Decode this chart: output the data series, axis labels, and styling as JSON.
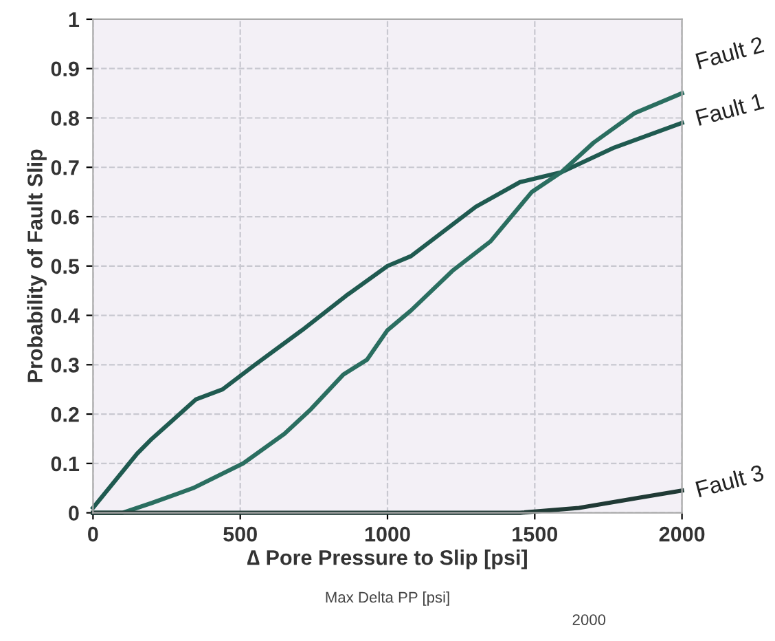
{
  "chart_data": {
    "type": "line",
    "xlabel": "∆ Pore Pressure to Slip [psi]",
    "ylabel": "Probability of Fault Slip",
    "xlim": [
      0,
      2000
    ],
    "xticks": [
      0,
      500,
      1000,
      1500,
      2000
    ],
    "ylim": [
      0,
      1
    ],
    "yticks": [
      0,
      {
        "value": 0.1,
        "label": "0.1"
      },
      {
        "value": 0.2,
        "label": "0.2"
      },
      {
        "value": 0.3,
        "label": "0.3"
      },
      {
        "value": 0.4,
        "label": "0.4"
      },
      {
        "value": 0.5,
        "label": "0.5"
      },
      {
        "value": 0.6,
        "label": "0.6"
      },
      {
        "value": 0.7,
        "label": "0.7"
      },
      {
        "value": 0.8,
        "label": "0.8"
      },
      {
        "value": 0.9,
        "label": "0.9"
      },
      1
    ],
    "grid": true,
    "legend": false,
    "marker": "none",
    "line_style": "solid",
    "series": [
      {
        "name": "Fault 1",
        "color": "#1f5a50",
        "x": [
          0,
          150,
          200,
          350,
          440,
          550,
          710,
          860,
          1000,
          1080,
          1300,
          1450,
          1590,
          1770,
          2000
        ],
        "values": [
          0.01,
          0.12,
          0.15,
          0.23,
          0.25,
          0.3,
          0.37,
          0.44,
          0.5,
          0.52,
          0.62,
          0.67,
          0.69,
          0.74,
          0.79
        ]
      },
      {
        "name": "Fault 2",
        "color": "#2a6e60",
        "x": [
          0,
          100,
          200,
          340,
          510,
          650,
          740,
          850,
          930,
          1000,
          1080,
          1220,
          1350,
          1490,
          1590,
          1700,
          1840,
          2000
        ],
        "values": [
          0,
          0,
          0.02,
          0.05,
          0.1,
          0.16,
          0.21,
          0.28,
          0.31,
          0.37,
          0.41,
          0.49,
          0.55,
          0.65,
          0.69,
          0.75,
          0.81,
          0.85
        ]
      },
      {
        "name": "Fault 3",
        "color": "#203a35",
        "x": [
          0,
          1450,
          1650,
          1850,
          2000
        ],
        "values": [
          0,
          0,
          0.01,
          0.03,
          0.045
        ]
      }
    ],
    "annotations": [
      "Max Delta PP [psi]",
      "2000"
    ]
  }
}
